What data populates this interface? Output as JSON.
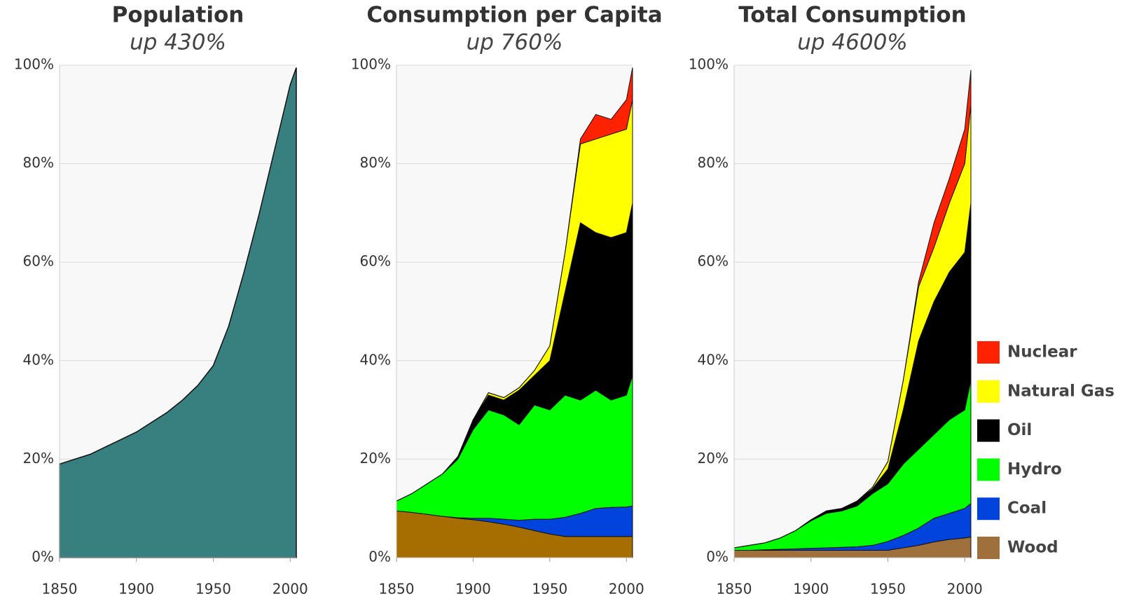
{
  "chart_data": [
    {
      "type": "area",
      "title": "Population",
      "subtitle": "up 430%",
      "x": [
        1850,
        1860,
        1870,
        1880,
        1890,
        1900,
        1910,
        1920,
        1930,
        1940,
        1950,
        1960,
        1970,
        1980,
        1990,
        2000,
        2004
      ],
      "values": [
        19,
        20,
        21,
        22.5,
        24,
        25.5,
        27.5,
        29.5,
        32,
        35,
        39,
        47,
        58,
        70,
        83,
        96,
        99.5
      ],
      "color": "#387f7f",
      "xlim": [
        1850,
        2004
      ],
      "xticks": [
        1850,
        1900,
        1950,
        2000
      ],
      "ylim": [
        0,
        100
      ],
      "yticks": [
        {
          "value": 0,
          "label": "0%"
        },
        {
          "value": 20,
          "label": "20%"
        },
        {
          "value": 40,
          "label": "40%"
        },
        {
          "value": 60,
          "label": "60%"
        },
        {
          "value": 80,
          "label": "80%"
        },
        {
          "value": 100,
          "label": "100%"
        }
      ],
      "grid": true
    },
    {
      "type": "stacked_area",
      "title": "Consumption per Capita",
      "subtitle": "up 760%",
      "x": [
        1850,
        1860,
        1870,
        1880,
        1890,
        1900,
        1910,
        1920,
        1930,
        1940,
        1950,
        1960,
        1970,
        1980,
        1990,
        2000,
        2004
      ],
      "series": [
        {
          "name": "Wood",
          "color": "#a66e00",
          "values": [
            9.5,
            9.2,
            8.8,
            8.4,
            8,
            7.7,
            7.3,
            6.8,
            6.2,
            5.5,
            4.8,
            4.3,
            4.3,
            4.3,
            4.3,
            4.3,
            4.3
          ]
        },
        {
          "name": "Coal",
          "color": "#0044dd",
          "values": [
            0,
            0,
            0,
            0,
            0.1,
            0.3,
            0.7,
            1,
            1.4,
            2.3,
            3,
            3.9,
            4.7,
            5.7,
            5.9,
            6,
            6.2
          ]
        },
        {
          "name": "Hydro",
          "color": "#00ff00",
          "values": [
            2,
            3.8,
            6.2,
            8.6,
            11.9,
            18,
            22,
            21.2,
            19.4,
            23.2,
            22.2,
            24.8,
            23,
            24,
            21.8,
            22.7,
            26.5
          ]
        },
        {
          "name": "Oil",
          "color": "#000000",
          "values": [
            0,
            0,
            0,
            0,
            0.5,
            2,
            3,
            3,
            7,
            6,
            10,
            21,
            36,
            32,
            33,
            33,
            35
          ]
        },
        {
          "name": "Natural Gas",
          "color": "#ffff00",
          "values": [
            0,
            0,
            0,
            0,
            0,
            0,
            0.5,
            0.5,
            0.5,
            1,
            3,
            8,
            16,
            19,
            21,
            21,
            21
          ]
        },
        {
          "name": "Nuclear",
          "color": "#ff2200",
          "values": [
            0,
            0,
            0,
            0,
            0,
            0,
            0,
            0,
            0,
            0,
            0,
            0,
            1,
            5,
            3,
            6,
            6.5
          ]
        }
      ],
      "xlim": [
        1850,
        2004
      ],
      "xticks": [
        1850,
        1900,
        1950,
        2000
      ],
      "ylim": [
        0,
        100
      ],
      "yticks": [
        {
          "value": 0,
          "label": "0%"
        },
        {
          "value": 20,
          "label": "20%"
        },
        {
          "value": 40,
          "label": "40%"
        },
        {
          "value": 60,
          "label": "60%"
        },
        {
          "value": 80,
          "label": "80%"
        },
        {
          "value": 100,
          "label": "100%"
        }
      ],
      "grid": true
    },
    {
      "type": "stacked_area",
      "title": "Total Consumption",
      "subtitle": "up 4600%",
      "x": [
        1850,
        1860,
        1870,
        1880,
        1890,
        1900,
        1910,
        1920,
        1930,
        1940,
        1950,
        1960,
        1970,
        1980,
        1990,
        2000,
        2004
      ],
      "series": [
        {
          "name": "Wood",
          "color": "#a0703c",
          "values": [
            1.5,
            1.5,
            1.5,
            1.5,
            1.5,
            1.5,
            1.5,
            1.5,
            1.5,
            1.5,
            1.5,
            2,
            2.5,
            3.2,
            3.7,
            4,
            4.2
          ]
        },
        {
          "name": "Coal",
          "color": "#0044dd",
          "values": [
            0,
            0,
            0.1,
            0.2,
            0.3,
            0.4,
            0.5,
            0.6,
            0.7,
            1,
            1.8,
            2.5,
            3.5,
            4.8,
            5.3,
            6,
            6.8
          ]
        },
        {
          "name": "Hydro",
          "color": "#00ff00",
          "values": [
            0.5,
            1,
            1.4,
            2.3,
            3.7,
            5.6,
            7,
            7.4,
            8.3,
            10.5,
            11.7,
            14.5,
            16,
            17,
            19,
            20,
            25
          ]
        },
        {
          "name": "Oil",
          "color": "#000000",
          "values": [
            0,
            0,
            0,
            0,
            0,
            0.2,
            0.5,
            0.5,
            1,
            1,
            3,
            11,
            22,
            27,
            30,
            32,
            36
          ]
        },
        {
          "name": "Natural Gas",
          "color": "#ffff00",
          "values": [
            0,
            0,
            0,
            0,
            0,
            0,
            0,
            0,
            0,
            0.3,
            1.5,
            6,
            11,
            11,
            14,
            18,
            20
          ]
        },
        {
          "name": "Nuclear",
          "color": "#ff2200",
          "values": [
            0,
            0,
            0,
            0,
            0,
            0,
            0,
            0,
            0,
            0,
            0,
            0,
            1,
            5,
            5,
            7,
            7
          ]
        }
      ],
      "xlim": [
        1850,
        2004
      ],
      "xticks": [
        1850,
        1900,
        1950,
        2000
      ],
      "ylim": [
        0,
        100
      ],
      "yticks": [
        {
          "value": 0,
          "label": "0%"
        },
        {
          "value": 20,
          "label": "20%"
        },
        {
          "value": 40,
          "label": "40%"
        },
        {
          "value": 60,
          "label": "60%"
        },
        {
          "value": 80,
          "label": "80%"
        },
        {
          "value": 100,
          "label": "100%"
        }
      ],
      "grid": true,
      "legend": "right"
    }
  ]
}
